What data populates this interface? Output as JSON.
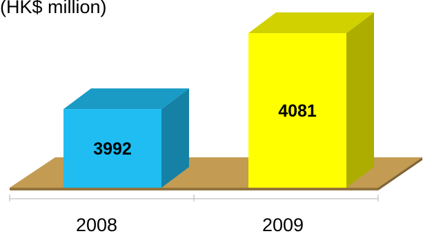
{
  "chart_data": {
    "type": "bar",
    "title": "",
    "unit_label": "(HK$ million)",
    "xlabel": "",
    "ylabel": "",
    "categories": [
      "2008",
      "2009"
    ],
    "values": [
      3992,
      4081
    ],
    "value_labels": [
      "3992",
      "4081"
    ],
    "ylim": [
      3900,
      4100
    ],
    "grid": false,
    "legend": "none",
    "style": "3d",
    "colors": {
      "bars": [
        "#1fbdf2",
        "#ffff00"
      ],
      "floor": "#c39b52"
    }
  }
}
